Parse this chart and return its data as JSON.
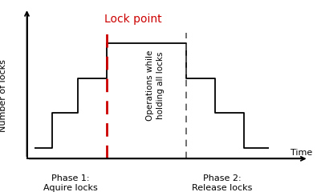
{
  "ylabel": "Number of locks",
  "xlabel": "Time",
  "background_color": "#ffffff",
  "step_x": [
    1.0,
    1.5,
    1.5,
    2.2,
    2.2,
    3.0,
    3.0,
    5.2,
    5.2,
    6.0,
    6.0,
    6.8,
    6.8,
    7.5
  ],
  "step_y": [
    0,
    0,
    1,
    1,
    2,
    2,
    3,
    3,
    2,
    2,
    1,
    1,
    0,
    0
  ],
  "lock_point_x": 3.0,
  "end_point_x": 5.2,
  "lock_point_label": "Lock point",
  "phase1_x": 2.0,
  "phase1_label": "Phase 1:\nAquire locks",
  "phase2_x": 6.2,
  "phase2_label": "Phase 2:\nRelease locks",
  "operations_label": "Operations while\nholding all locks",
  "line_color": "#000000",
  "dashed_red_color": "#cc0000",
  "dashed_black_color": "#555555",
  "arrow_color": "#000000",
  "phase_label_fontsize": 8,
  "lock_point_fontsize": 10,
  "operations_fontsize": 7.5,
  "ylabel_fontsize": 8,
  "xlabel_fontsize": 8,
  "axis_origin_x": 0.8,
  "axis_origin_y": -0.3,
  "xlim": [
    0.4,
    8.8
  ],
  "ylim": [
    -1.2,
    4.2
  ]
}
